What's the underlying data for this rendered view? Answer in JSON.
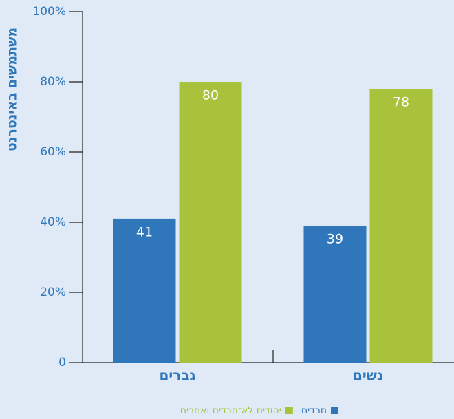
{
  "chart_data": {
    "type": "bar",
    "y_label": "משתמשים באינטרנט",
    "categories": [
      "גברים",
      "נשים"
    ],
    "series": [
      {
        "name": "חרדים",
        "color": "#2f77ba",
        "values": [
          41,
          39
        ]
      },
      {
        "name": "יהודים לא־חרדים ואחרים",
        "color": "#a9c23c",
        "values": [
          80,
          78
        ]
      }
    ],
    "ylim": [
      0,
      100
    ],
    "yticks": [
      0,
      {
        "value": 20,
        "label": "20%"
      },
      {
        "value": 40,
        "label": "40%"
      },
      {
        "value": 60,
        "label": "60%"
      },
      {
        "value": 80,
        "label": "80%"
      },
      {
        "value": 100,
        "label": "100%"
      }
    ]
  }
}
